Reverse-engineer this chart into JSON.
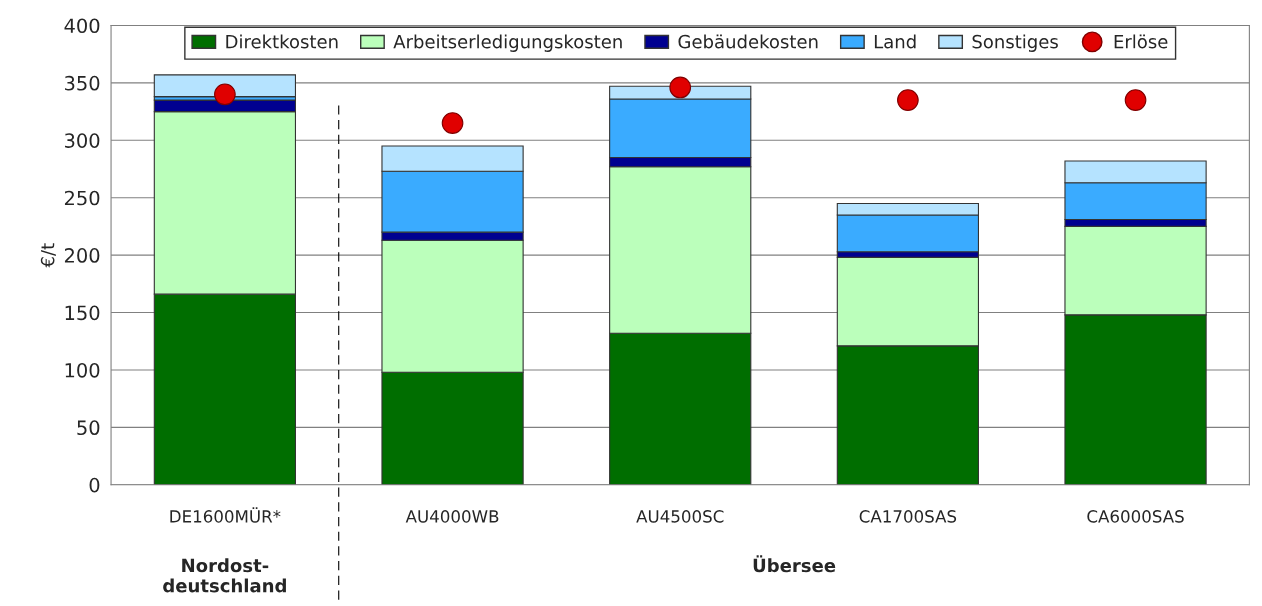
{
  "chart_data": {
    "type": "bar",
    "stacked": true,
    "ylabel": "€/t",
    "categories": [
      "DE1600MÜR*",
      "AU4000WB",
      "AU4500SC",
      "CA1700SAS",
      "CA6000SAS"
    ],
    "series": [
      {
        "name": "Direktkosten",
        "color": "#006e00",
        "values": [
          166,
          98,
          132,
          121,
          148
        ]
      },
      {
        "name": "Arbeitserledigungskosten",
        "color": "#bbffbb",
        "values": [
          159,
          115,
          145,
          77,
          77
        ]
      },
      {
        "name": "Gebäudekosten",
        "color": "#000090",
        "values": [
          10,
          7,
          8,
          5,
          6
        ]
      },
      {
        "name": "Land",
        "color": "#3aabff",
        "values": [
          3,
          53,
          51,
          32,
          32
        ]
      },
      {
        "name": "Sonstiges",
        "color": "#b5e3ff",
        "values": [
          19,
          22,
          11,
          10,
          19
        ]
      },
      {
        "name": "Erlöse",
        "type": "scatter",
        "color": "#e00000",
        "marker": "circle",
        "x": [
          "DE1600MÜR*",
          "AU4000WB",
          "AU4500SC",
          "CA1700SAS",
          "CA6000SAS"
        ],
        "values": [
          340,
          315,
          346,
          335,
          335
        ]
      }
    ],
    "ylim": [
      0,
      400
    ],
    "yticks": [
      0,
      50,
      100,
      150,
      200,
      250,
      300,
      350,
      400
    ],
    "grid": "y",
    "legend": "top",
    "annotations": [
      "Nordost-\ndeutschland",
      "Übersee"
    ]
  }
}
